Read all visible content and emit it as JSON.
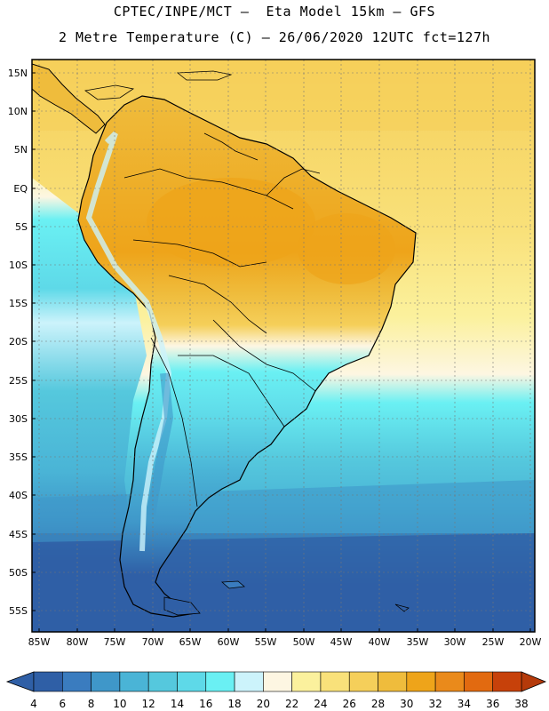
{
  "title": {
    "line1": "CPTEC/INPE/MCT –  Eta Model 15km – GFS",
    "line2": "2 Metre Temperature (C) – 26/06/2020 12UTC fct=127h"
  },
  "map": {
    "region": "South America",
    "variable": "2 Metre Temperature",
    "units": "C",
    "lat_labels": [
      "15N",
      "10N",
      "5N",
      "EQ",
      "5S",
      "10S",
      "15S",
      "20S",
      "25S",
      "30S",
      "35S",
      "40S",
      "45S",
      "50S",
      "55S"
    ],
    "lon_labels": [
      "85W",
      "80W",
      "75W",
      "70W",
      "65W",
      "60W",
      "55W",
      "50W",
      "45W",
      "40W",
      "35W",
      "30W",
      "25W",
      "20W"
    ],
    "extent": {
      "lon_min": -86,
      "lon max": -19.5,
      "lat_min": -57.5,
      "lat_max": 16.5
    }
  },
  "colorbar": {
    "labels": [
      "4",
      "6",
      "8",
      "10",
      "12",
      "14",
      "16",
      "18",
      "20",
      "22",
      "24",
      "26",
      "28",
      "30",
      "32",
      "34",
      "36",
      "38"
    ],
    "colors": [
      "#2f5fa6",
      "#3a7cbf",
      "#3f97c9",
      "#4ab4d6",
      "#55c8dd",
      "#5ed9e8",
      "#6af0f3",
      "#ccf3fb",
      "#fdf6e2",
      "#fbf19d",
      "#f9e17a",
      "#f5cf5a",
      "#efbc3c",
      "#eea41a",
      "#ea8a1b",
      "#e26a10",
      "#c7410a"
    ],
    "under_color": "#2f5fa6",
    "over_color": "#b53a0a"
  },
  "colors": {
    "ocean_cold": "#2f5fa6",
    "ocean_cool": "#4ab4d6",
    "ocean_mild": "#6af0f3",
    "ocean_warm": "#f9e17a",
    "land_hot": "#eea41a",
    "coast": "#000000"
  }
}
